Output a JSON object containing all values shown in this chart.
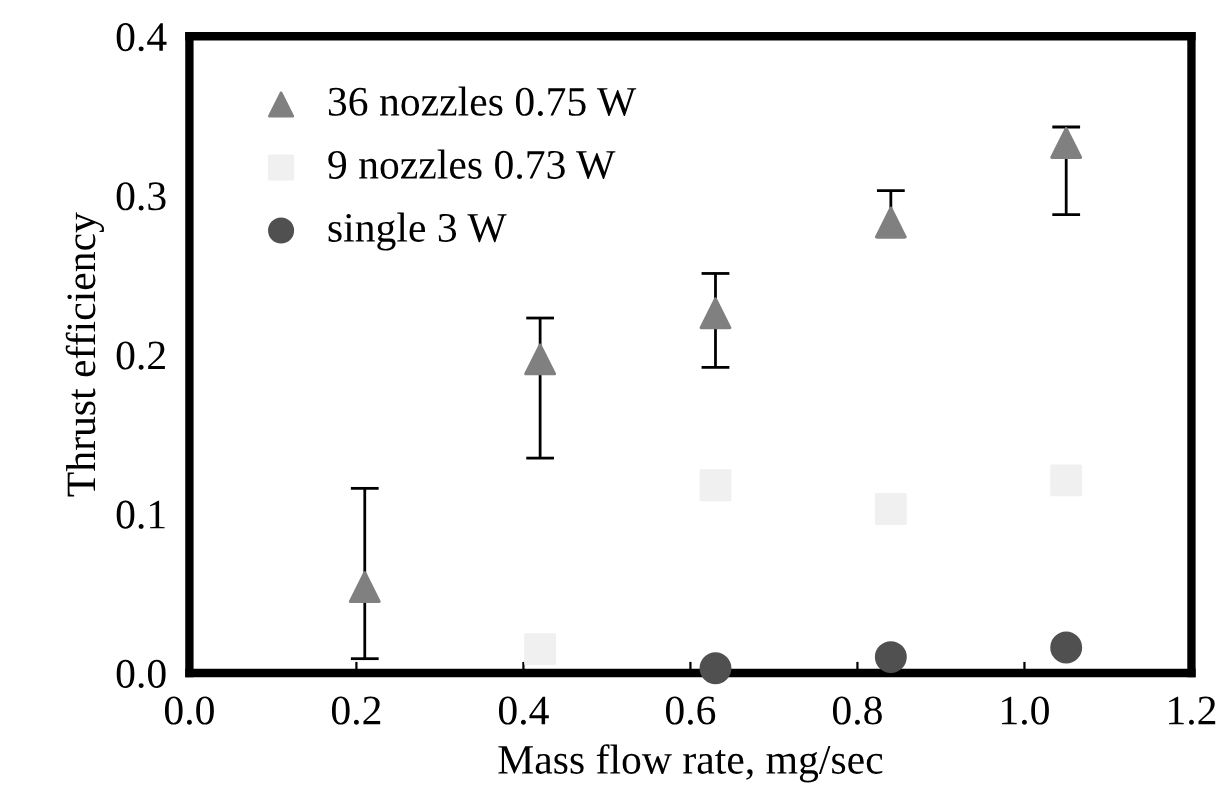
{
  "chart_data": {
    "type": "scatter",
    "xlabel": "Mass flow rate, mg/sec",
    "ylabel": "Thrust efficiency",
    "xlim": [
      0.0,
      1.2
    ],
    "xticks": [
      {
        "value": 0,
        "label": "0.0"
      },
      0.2,
      0.4,
      0.6,
      0.8,
      {
        "value": 1,
        "label": "1.0"
      },
      1.2
    ],
    "ylim": [
      0.0,
      0.4
    ],
    "yticks": [
      {
        "value": 0,
        "label": "0.0"
      },
      0.1,
      0.2,
      0.3,
      0.4
    ],
    "grid": false,
    "legend": "top left",
    "series": [
      {
        "name": "36 nozzles 0.75 W",
        "color": "#808080",
        "marker": "triangle",
        "x": [
          0.21,
          0.42,
          0.63,
          0.84,
          1.05
        ],
        "values": [
          0.054,
          0.197,
          0.226,
          0.283,
          0.333
        ],
        "errors": [
          [
            0.009,
            0.116
          ],
          [
            0.135,
            0.223
          ],
          [
            0.192,
            0.251
          ],
          [
            0.274,
            0.303
          ],
          [
            0.288,
            0.343
          ]
        ]
      },
      {
        "name": "9 nozzles 0.73 W",
        "color": "#f0f0f0",
        "marker": "square",
        "x": [
          0.42,
          0.63,
          0.84,
          1.05
        ],
        "values": [
          0.015,
          0.118,
          0.103,
          0.121
        ]
      },
      {
        "name": "single 3 W",
        "color": "#505050",
        "marker": "circle",
        "x": [
          0.63,
          0.84,
          1.05
        ],
        "values": [
          0.003,
          0.01,
          0.016
        ]
      }
    ]
  }
}
